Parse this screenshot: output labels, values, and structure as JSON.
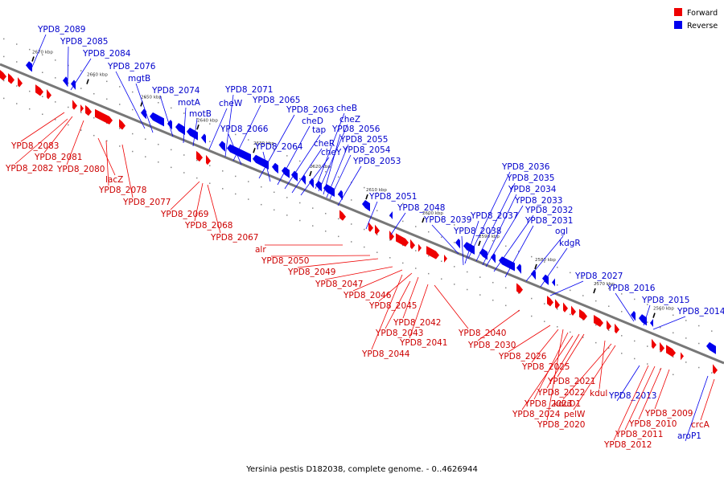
{
  "caption": "Yersinia pestis D182038, complete genome. - 0..4626944",
  "legend": [
    {
      "label": "Forward",
      "color": "#ee0000"
    },
    {
      "label": "Reverse",
      "color": "#0000ee"
    }
  ],
  "colors": {
    "forward": "#ee0000",
    "reverse": "#0000ee",
    "backbone": "#777777"
  },
  "ticks": [
    "2670 kbp",
    "2660 kbp",
    "2650 kbp",
    "2640 kbp",
    "2630 kbp",
    "2620 kbp",
    "2610 kbp",
    "2600 kbp",
    "2590 kbp",
    "2580 kbp",
    "2570 kbp",
    "2560 kbp"
  ],
  "reverse_labels": [
    "YPD8_2089",
    "YPD8_2085",
    "YPD8_2084",
    "YPD8_2076",
    "mgtB",
    "YPD8_2074",
    "motA",
    "motB",
    "cheW",
    "YPD8_2071",
    "YPD8_2065",
    "YPD8_2066",
    "YPD8_2063",
    "cheB",
    "cheD",
    "cheZ",
    "tap",
    "YPD8_2056",
    "cheR",
    "YPD8_2055",
    "YPD8_2064",
    "cheY",
    "YPD8_2054",
    "YPD8_2053",
    "YPD8_2051",
    "YPD8_2048",
    "YPD8_2039",
    "YPD8_2036",
    "YPD8_2035",
    "YPD8_2034",
    "YPD8_2033",
    "YPD8_2037",
    "YPD8_2032",
    "YPD8_2038",
    "YPD8_2031",
    "ogl",
    "kdgR",
    "YPD8_2027",
    "YPD8_2016",
    "YPD8_2015",
    "YPD8_2014",
    "YPD8_2013",
    "aroP1"
  ],
  "forward_labels": [
    "YPD8_2083",
    "YPD8_2081",
    "YPD8_2082",
    "YPD8_2080",
    "lacZ",
    "YPD8_2078",
    "YPD8_2077",
    "YPD8_2069",
    "YPD8_2068",
    "YPD8_2067",
    "alr",
    "YPD8_2050",
    "YPD8_2049",
    "YPD8_2047",
    "YPD8_2046",
    "YPD8_2045",
    "YPD8_2042",
    "YPD8_2043",
    "YPD8_2041",
    "YPD8_2040",
    "YPD8_2044",
    "YPD8_2030",
    "YPD8_2026",
    "YPD8_2025",
    "YPD8_2021",
    "YPD8_2022",
    "kdul",
    "YPD8_2023",
    "kduD1",
    "YPD8_2024",
    "pelW",
    "YPD8_2020",
    "YPD8_2009",
    "YPD8_2010",
    "YPD8_2011",
    "YPD8_2012",
    "crcA"
  ]
}
